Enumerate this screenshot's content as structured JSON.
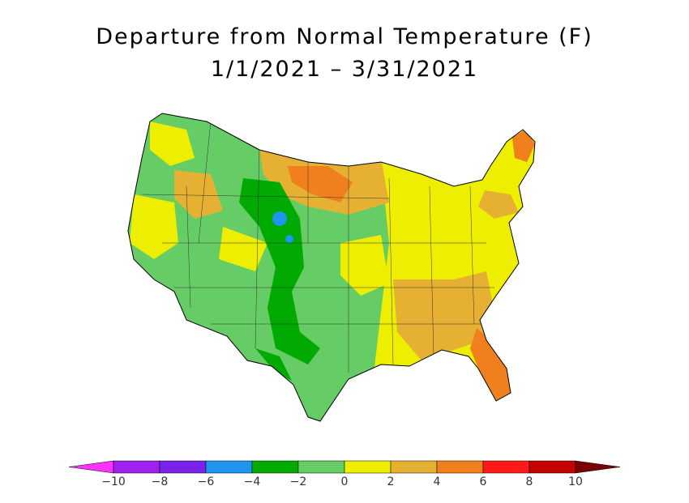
{
  "title": {
    "line1": "Departure from Normal Temperature (F)",
    "line2": "1/1/2021 – 3/31/2021"
  },
  "legend": {
    "ticks": [
      "−10",
      "−8",
      "−6",
      "−4",
      "−2",
      "0",
      "2",
      "4",
      "6",
      "8",
      "10"
    ],
    "bins": [
      {
        "label": "<-10",
        "color": "#ff33ff"
      },
      {
        "label": "-10 to -8",
        "color": "#a020f0"
      },
      {
        "label": "-8 to -6",
        "color": "#7b22e8"
      },
      {
        "label": "-6 to -4",
        "color": "#1e96f0"
      },
      {
        "label": "-4 to -2",
        "color": "#00aa00"
      },
      {
        "label": "-2 to 0",
        "color": "#66cc66"
      },
      {
        "label": "0 to 2",
        "color": "#eeee00"
      },
      {
        "label": "2 to 4",
        "color": "#e6b133"
      },
      {
        "label": "4 to 6",
        "color": "#f07f1e"
      },
      {
        "label": "6 to 8",
        "color": "#ff1a1a"
      },
      {
        "label": "8 to 10",
        "color": "#c40000"
      },
      {
        "label": ">10",
        "color": "#7a0000"
      }
    ]
  },
  "map": {
    "region": "Contiguous United States",
    "background": "#ffffff",
    "regions": [
      {
        "name": "Northwest / Interior West",
        "class": "-2 to 0",
        "color": "#66cc66"
      },
      {
        "name": "Central Rockies / Plains",
        "class": "-4 to -2",
        "color": "#00aa00"
      },
      {
        "name": "Northern Plains / Upper Midwest",
        "class": "2 to 4",
        "color": "#e6b133"
      },
      {
        "name": "Southeast / Gulf",
        "class": "2 to 4",
        "color": "#e6b133"
      },
      {
        "name": "Florida",
        "class": "4 to 6",
        "color": "#f07f1e"
      },
      {
        "name": "Northeast",
        "class": "0 to 2",
        "color": "#eeee00"
      },
      {
        "name": "Maine",
        "class": "4 to 6",
        "color": "#f07f1e"
      }
    ]
  }
}
